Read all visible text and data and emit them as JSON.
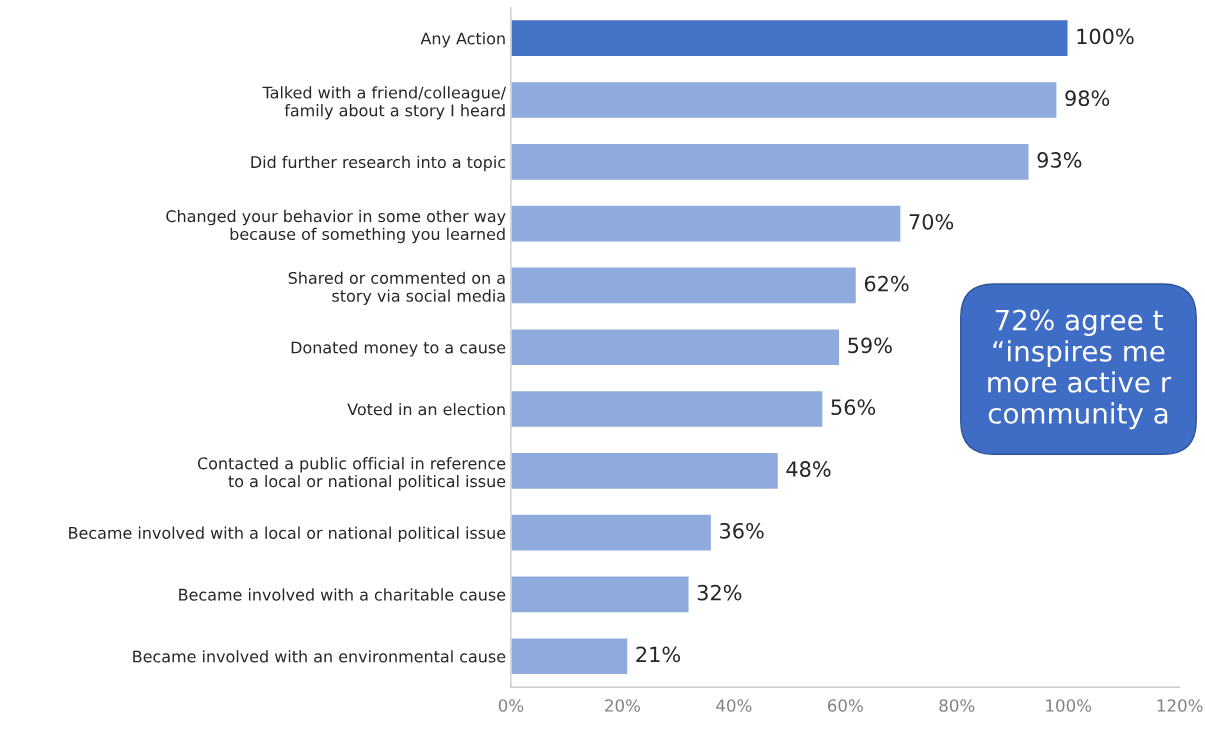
{
  "chart_data": {
    "type": "bar",
    "orientation": "horizontal",
    "categories": [
      "Any Action",
      "Talked with a friend/colleague/\nfamily about a story I heard",
      "Did further research into a topic",
      "Changed your behavior in some other way\nbecause of something you learned",
      "Shared or commented on a\nstory via social media",
      "Donated money to a cause",
      "Voted in an election",
      "Contacted a public official in reference\nto a local or national political issue",
      "Became involved with a local or national political issue",
      "Became involved with a charitable cause",
      "Became involved with an environmental cause"
    ],
    "values": [
      100,
      98,
      93,
      70,
      62,
      59,
      56,
      48,
      36,
      32,
      21
    ],
    "colors": [
      "#4472c4",
      "#8faadc",
      "#8faadc",
      "#8faadc",
      "#8faadc",
      "#8faadc",
      "#8faadc",
      "#8faadc",
      "#8faadc",
      "#8faadc",
      "#8faadc"
    ],
    "value_labels": [
      "100%",
      "98%",
      "93%",
      "70%",
      "62%",
      "59%",
      "56%",
      "48%",
      "36%",
      "32%",
      "21%"
    ],
    "xlim": [
      0,
      120
    ],
    "xticks": [
      {
        "value": 0,
        "label": "0%"
      },
      {
        "value": 20,
        "label": "20%"
      },
      {
        "value": 40,
        "label": "40%"
      },
      {
        "value": 60,
        "label": "60%"
      },
      {
        "value": 80,
        "label": "80%"
      },
      {
        "value": 100,
        "label": "100%"
      },
      {
        "value": 120,
        "label": "120%"
      }
    ],
    "grid": false,
    "annotations": [
      "72% agree t\n“inspires me\nmore active r\ncommunity a"
    ]
  }
}
